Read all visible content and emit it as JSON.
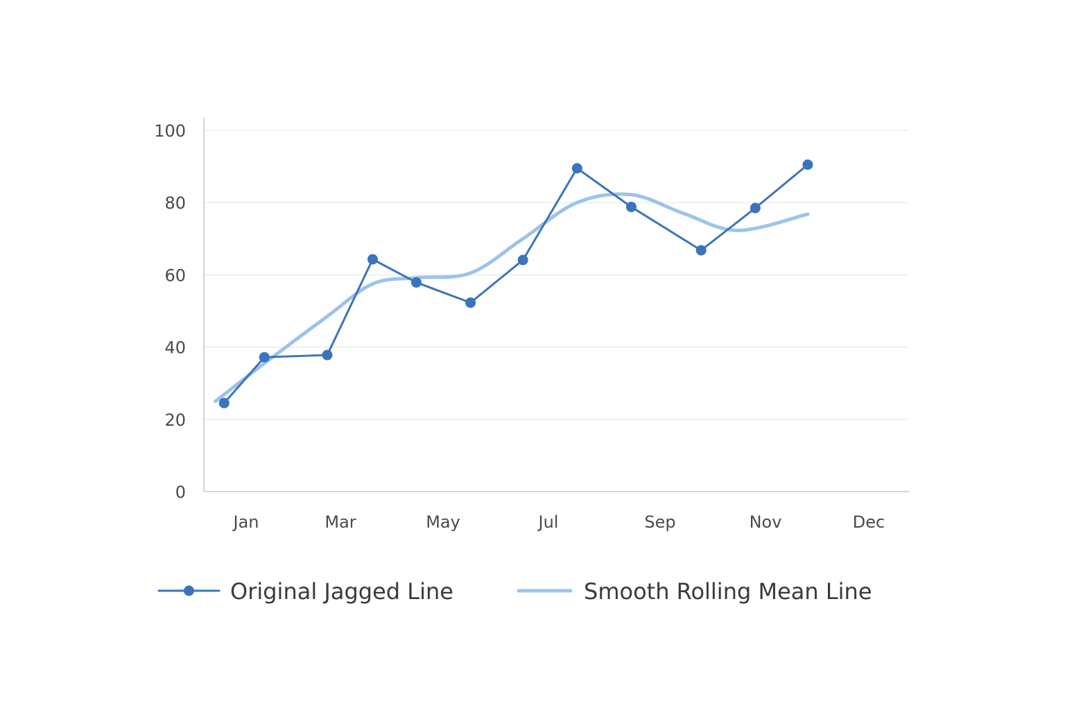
{
  "chart_data": {
    "type": "line",
    "x_tick_labels": [
      "Jan",
      "Mar",
      "May",
      "Jul",
      "Sep",
      "Nov",
      "Dec"
    ],
    "y_ticks": [
      0,
      20,
      40,
      60,
      80,
      100
    ],
    "ylim": [
      0,
      100
    ],
    "grid": "horizontal",
    "legend_position": "bottom",
    "series": [
      {
        "name": "Original Jagged Line",
        "color": "#3a74bd",
        "marker": "circle",
        "points": [
          {
            "x": "2023-01-15",
            "y": 24.5
          },
          {
            "x": "2023-02-07",
            "y": 37.2
          },
          {
            "x": "2023-03-15",
            "y": 37.8
          },
          {
            "x": "2023-04-10",
            "y": 64.3
          },
          {
            "x": "2023-05-05",
            "y": 57.9
          },
          {
            "x": "2023-06-05",
            "y": 52.3
          },
          {
            "x": "2023-07-05",
            "y": 64.1
          },
          {
            "x": "2023-08-05",
            "y": 89.5
          },
          {
            "x": "2023-09-05",
            "y": 78.8
          },
          {
            "x": "2023-10-15",
            "y": 66.8
          },
          {
            "x": "2023-11-15",
            "y": 78.5
          },
          {
            "x": "2023-12-15",
            "y": 90.5
          }
        ]
      },
      {
        "name": "Smooth Rolling Mean Line",
        "color": "#9cc3ea",
        "marker": "none",
        "points": [
          {
            "x": "2023-01-10",
            "y": 25.0
          },
          {
            "x": "2023-02-07",
            "y": 35.5
          },
          {
            "x": "2023-03-15",
            "y": 48.5
          },
          {
            "x": "2023-04-10",
            "y": 57.5
          },
          {
            "x": "2023-05-05",
            "y": 59.2
          },
          {
            "x": "2023-06-05",
            "y": 60.5
          },
          {
            "x": "2023-07-05",
            "y": 70.0
          },
          {
            "x": "2023-08-05",
            "y": 80.0
          },
          {
            "x": "2023-09-05",
            "y": 82.2
          },
          {
            "x": "2023-10-05",
            "y": 77.0
          },
          {
            "x": "2023-11-05",
            "y": 72.3
          },
          {
            "x": "2023-12-15",
            "y": 76.8
          }
        ]
      }
    ]
  }
}
